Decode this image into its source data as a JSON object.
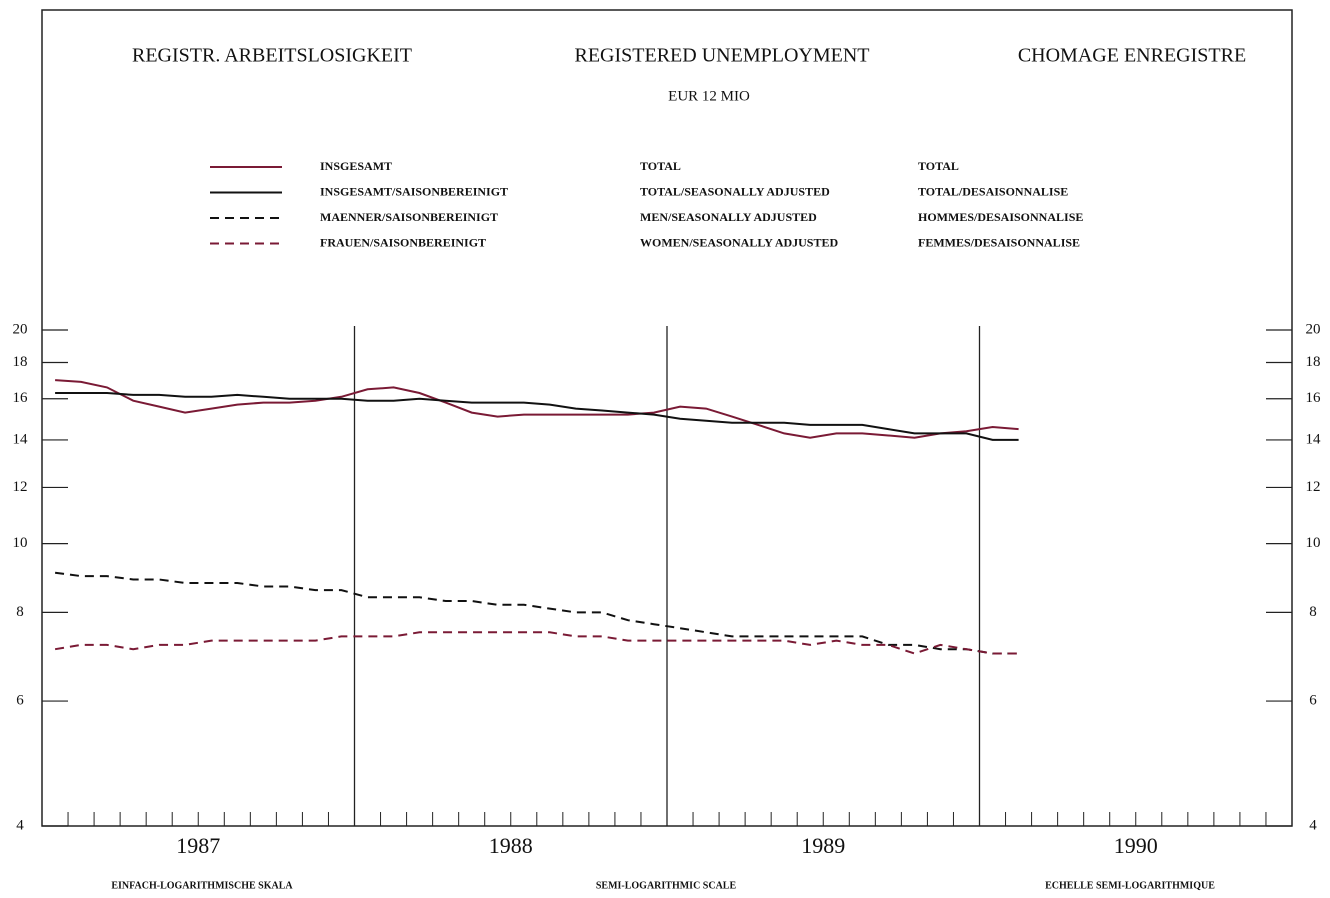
{
  "chart_data": {
    "type": "line",
    "titles": [
      "REGISTR. ARBEITSLOSIGKEIT",
      "REGISTERED UNEMPLOYMENT",
      "CHOMAGE ENREGISTRE"
    ],
    "subtitle": "EUR 12 MIO",
    "footers": [
      "EINFACH-LOGARITHMISCHE SKALA",
      "SEMI-LOGARITHMIC SCALE",
      "ECHELLE SEMI-LOGARITHMIQUE"
    ],
    "log_scale": true,
    "xlim": [
      1987,
      1991
    ],
    "xticks": [
      {
        "value": 1987.5,
        "label": "1987"
      },
      {
        "value": 1988.5,
        "label": "1988"
      },
      {
        "value": 1989.5,
        "label": "1989"
      },
      {
        "value": 1990.5,
        "label": "1990"
      }
    ],
    "year_lines": [
      1988,
      1989,
      1990
    ],
    "ylim": [
      4,
      20
    ],
    "yticks": [
      4,
      6,
      8,
      10,
      12,
      14,
      16,
      18,
      20
    ],
    "x": [
      1987.042,
      1987.125,
      1987.208,
      1987.292,
      1987.375,
      1987.458,
      1987.542,
      1987.625,
      1987.708,
      1987.792,
      1987.875,
      1987.958,
      1988.042,
      1988.125,
      1988.208,
      1988.292,
      1988.375,
      1988.458,
      1988.542,
      1988.625,
      1988.708,
      1988.792,
      1988.875,
      1988.958,
      1989.042,
      1989.125,
      1989.208,
      1989.292,
      1989.375,
      1989.458,
      1989.542,
      1989.625,
      1989.708,
      1989.792,
      1989.875,
      1989.958,
      1990.042,
      1990.125
    ],
    "series": [
      {
        "name": "INSGESAMT",
        "name_en": "TOTAL",
        "name_fr": "TOTAL",
        "color": "#7a1a35",
        "dashed": false,
        "values": [
          17.0,
          16.9,
          16.6,
          15.9,
          15.6,
          15.3,
          15.5,
          15.7,
          15.8,
          15.8,
          15.9,
          16.1,
          16.5,
          16.6,
          16.3,
          15.8,
          15.3,
          15.1,
          15.2,
          15.2,
          15.2,
          15.2,
          15.2,
          15.3,
          15.6,
          15.5,
          15.1,
          14.7,
          14.3,
          14.1,
          14.3,
          14.3,
          14.2,
          14.1,
          14.3,
          14.4,
          14.6,
          14.5
        ]
      },
      {
        "name": "INSGESAMT/SAISONBEREINIGT",
        "name_en": "TOTAL/SEASONALLY ADJUSTED",
        "name_fr": "TOTAL/DESAISONNALISE",
        "color": "#111111",
        "dashed": false,
        "values": [
          16.3,
          16.3,
          16.3,
          16.2,
          16.2,
          16.1,
          16.1,
          16.2,
          16.1,
          16.0,
          16.0,
          16.0,
          15.9,
          15.9,
          16.0,
          15.9,
          15.8,
          15.8,
          15.8,
          15.7,
          15.5,
          15.4,
          15.3,
          15.2,
          15.0,
          14.9,
          14.8,
          14.8,
          14.8,
          14.7,
          14.7,
          14.7,
          14.5,
          14.3,
          14.3,
          14.3,
          14.0,
          14.0
        ]
      },
      {
        "name": "MAENNER/SAISONBEREINIGT",
        "name_en": "MEN/SEASONALLY ADJUSTED",
        "name_fr": "HOMMES/DESAISONNALISE",
        "color": "#111111",
        "dashed": true,
        "values": [
          9.1,
          9.0,
          9.0,
          8.9,
          8.9,
          8.8,
          8.8,
          8.8,
          8.7,
          8.7,
          8.6,
          8.6,
          8.4,
          8.4,
          8.4,
          8.3,
          8.3,
          8.2,
          8.2,
          8.1,
          8.0,
          8.0,
          7.8,
          7.7,
          7.6,
          7.5,
          7.4,
          7.4,
          7.4,
          7.4,
          7.4,
          7.4,
          7.2,
          7.2,
          7.1,
          7.1,
          7.0,
          7.0
        ]
      },
      {
        "name": "FRAUEN/SAISONBEREINIGT",
        "name_en": "WOMEN/SEASONALLY ADJUSTED",
        "name_fr": "FEMMES/DESAISONNALISE",
        "color": "#7a1a35",
        "dashed": true,
        "values": [
          7.1,
          7.2,
          7.2,
          7.1,
          7.2,
          7.2,
          7.3,
          7.3,
          7.3,
          7.3,
          7.3,
          7.4,
          7.4,
          7.4,
          7.5,
          7.5,
          7.5,
          7.5,
          7.5,
          7.5,
          7.4,
          7.4,
          7.3,
          7.3,
          7.3,
          7.3,
          7.3,
          7.3,
          7.3,
          7.2,
          7.3,
          7.2,
          7.2,
          7.0,
          7.2,
          7.1,
          7.0,
          7.0
        ]
      }
    ]
  }
}
